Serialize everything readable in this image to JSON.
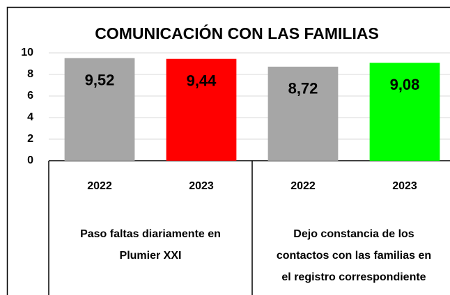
{
  "chart_data": {
    "type": "bar",
    "title": "COMUNICACIÓN CON LAS FAMILIAS",
    "categories": [
      "2022",
      "2023",
      "2022",
      "2023"
    ],
    "groups": [
      {
        "label": [
          "Paso faltas diariamente en",
          "Plumier XXI"
        ]
      },
      {
        "label": [
          "Dejo constancia de los",
          "contactos con las familias en",
          "el registro correspondiente"
        ]
      }
    ],
    "values": [
      9.52,
      9.44,
      8.72,
      9.08
    ],
    "value_labels": [
      "9,52",
      "9,44",
      "8,72",
      "9,08"
    ],
    "colors": [
      "#a6a6a6",
      "#ff0000",
      "#a6a6a6",
      "#00ff00"
    ],
    "ylim": [
      0,
      10
    ],
    "yticks": [
      0,
      2,
      4,
      6,
      8,
      10
    ],
    "grid": true
  }
}
